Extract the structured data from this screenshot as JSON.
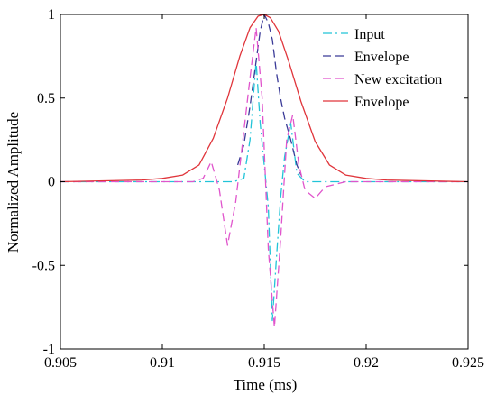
{
  "chart_data": {
    "type": "line",
    "title": "",
    "xlabel": "Time (ms)",
    "ylabel": "Normalized Amplitude",
    "xlim": [
      0.905,
      0.925
    ],
    "ylim": [
      -1,
      1
    ],
    "xticks": [
      0.905,
      0.91,
      0.915,
      0.92,
      0.925
    ],
    "xtick_labels": [
      "0.905",
      "0.91",
      "0.915",
      "0.92",
      "0.925"
    ],
    "yticks": [
      -1,
      -0.5,
      0,
      0.5,
      1
    ],
    "ytick_labels": [
      "-1",
      "-0.5",
      "0",
      "0.5",
      "1"
    ],
    "grid": false,
    "legend_position": "top-right",
    "series": [
      {
        "name": "Input",
        "color": "#22c4d8",
        "dash": "dashdot",
        "x": [
          0.905,
          0.912,
          0.9135,
          0.914,
          0.9143,
          0.9146,
          0.9148,
          0.915,
          0.9152,
          0.9154,
          0.9156,
          0.9158,
          0.916,
          0.9163,
          0.9166,
          0.917,
          0.918,
          0.925
        ],
        "y": [
          0,
          0,
          0,
          0.02,
          0.25,
          0.72,
          0.35,
          0.1,
          -0.15,
          -0.83,
          -0.45,
          -0.1,
          0.15,
          0.35,
          0.05,
          0,
          0,
          0
        ]
      },
      {
        "name": "Envelope",
        "color": "#3b3b98",
        "dash": "dashed",
        "x": [
          0.9137,
          0.914,
          0.9143,
          0.9146,
          0.9148,
          0.915,
          0.9152,
          0.9154,
          0.9156,
          0.9158,
          0.916,
          0.9163,
          0.9166,
          0.9168
        ],
        "y": [
          0.1,
          0.22,
          0.45,
          0.72,
          0.9,
          1.0,
          0.95,
          0.85,
          0.65,
          0.5,
          0.38,
          0.25,
          0.1,
          0.04
        ]
      },
      {
        "name": "New excitation",
        "color": "#e055cc",
        "dash": "dashed",
        "x": [
          0.905,
          0.91,
          0.9115,
          0.912,
          0.9124,
          0.9128,
          0.9132,
          0.9136,
          0.914,
          0.9143,
          0.9146,
          0.9149,
          0.9152,
          0.9155,
          0.9158,
          0.9161,
          0.9164,
          0.9167,
          0.917,
          0.9175,
          0.918,
          0.919,
          0.925
        ],
        "y": [
          0,
          0,
          0,
          0.02,
          0.12,
          -0.05,
          -0.38,
          -0.12,
          0.3,
          0.62,
          0.92,
          0.5,
          -0.4,
          -0.87,
          -0.35,
          0.25,
          0.4,
          0.1,
          -0.05,
          -0.1,
          -0.03,
          0,
          0
        ]
      },
      {
        "name": "Envelope",
        "color": "#e0353b",
        "dash": "solid",
        "x": [
          0.905,
          0.909,
          0.91,
          0.911,
          0.9118,
          0.9125,
          0.9132,
          0.9138,
          0.9143,
          0.9147,
          0.915,
          0.9153,
          0.9157,
          0.9162,
          0.9168,
          0.9175,
          0.9182,
          0.919,
          0.92,
          0.921,
          0.925
        ],
        "y": [
          0,
          0.01,
          0.02,
          0.04,
          0.1,
          0.26,
          0.5,
          0.75,
          0.92,
          0.99,
          1.0,
          0.98,
          0.9,
          0.72,
          0.48,
          0.24,
          0.1,
          0.04,
          0.02,
          0.01,
          0
        ]
      }
    ]
  }
}
